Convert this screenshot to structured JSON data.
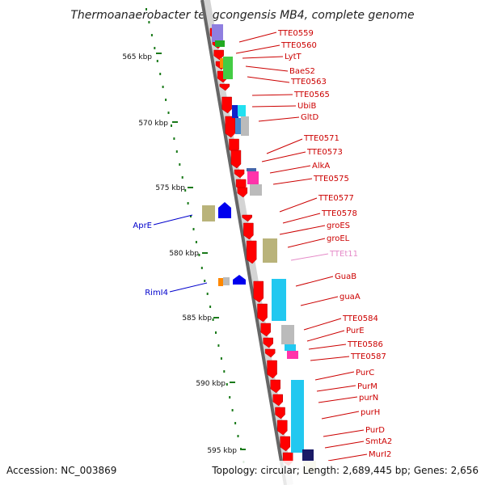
{
  "title": "Thermoanaerobacter tengcongensis MB4, complete genome",
  "footer": {
    "accession": "Accession: NC_003869",
    "stats": "Topology: circular; Length: 2,689,445 bp; Genes: 2,656"
  },
  "colors": {
    "gene_label": "#cc0000",
    "gene_label_faint": "#e58ac8",
    "left_label": "#0000cc",
    "tick": "#1a7a1a",
    "strand_arrow": "#ff0000"
  },
  "scale_ticks": [
    "565 kbp",
    "570 kbp",
    "575 kbp",
    "580 kbp",
    "585 kbp",
    "590 kbp",
    "595 kbp"
  ],
  "right_labels": [
    "TTE0559",
    "TTE0560",
    "LytT",
    "BaeS2",
    "TTE0563",
    "TTE0565",
    "UbiB",
    "GltD",
    "TTE0571",
    "TTE0573",
    "AlkA",
    "TTE0575",
    "TTE0577",
    "TTE0578",
    "groES",
    "groEL",
    "TTEt11",
    "GuaB",
    "guaA",
    "TTE0584",
    "PurE",
    "TTE0586",
    "TTE0587",
    "PurC",
    "PurM",
    "purN",
    "purH",
    "PurD",
    "SmtA2",
    "MurI2"
  ],
  "left_labels": [
    "AprE",
    "RimI4"
  ]
}
